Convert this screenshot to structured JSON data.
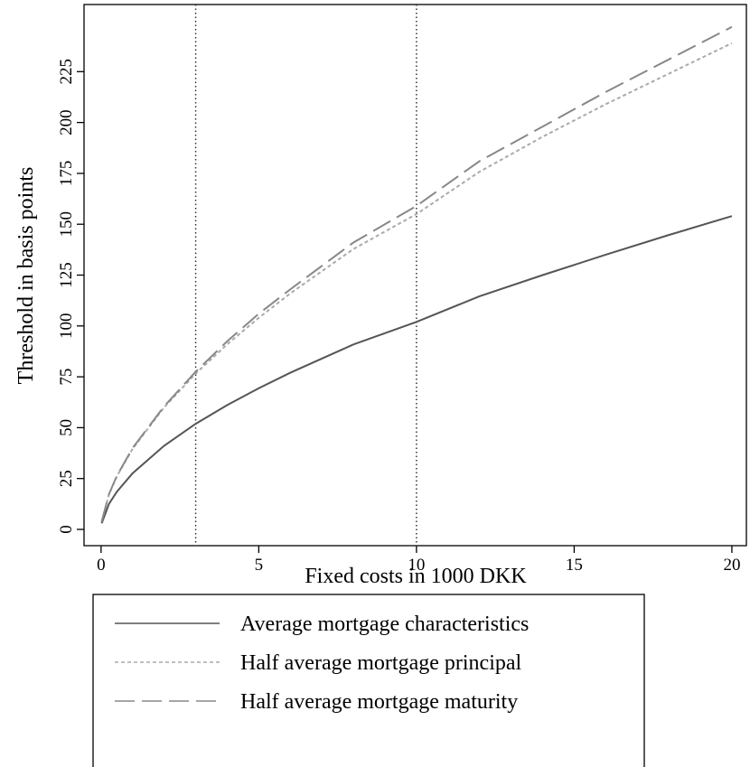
{
  "chart_data": {
    "type": "line",
    "xlabel": "Fixed costs in 1000 DKK",
    "ylabel": "Threshold in basis points",
    "x": [
      0.02,
      0.25,
      0.5,
      1,
      2,
      3,
      4,
      5,
      6,
      8,
      10,
      12,
      14,
      16,
      18,
      20
    ],
    "series": [
      {
        "name": "Average mortgage characteristics",
        "color": "#555555",
        "dash": "solid",
        "values": [
          3,
          12.5,
          18.5,
          27.6,
          41.1,
          51.9,
          61.1,
          69.4,
          77,
          90.9,
          102,
          114.6,
          125,
          135,
          144.7,
          154
        ]
      },
      {
        "name": "Half average mortgage principal",
        "color": "#aaaaaa",
        "dash": "short",
        "values": [
          3.8,
          17.2,
          26.1,
          39.6,
          60,
          76.6,
          91,
          104,
          116,
          137.8,
          155,
          175.8,
          193,
          209,
          224,
          239
        ]
      },
      {
        "name": "Half average mortgage maturity",
        "color": "#888888",
        "dash": "long",
        "values": [
          3.8,
          17.3,
          26.3,
          40,
          60.5,
          77.5,
          92.5,
          106,
          118,
          141,
          159,
          181,
          198,
          215,
          231,
          247
        ]
      }
    ],
    "vlines": [
      3,
      10
    ],
    "xlim": [
      -0.54,
      20.46
    ],
    "xticks": [
      0,
      5,
      10,
      15,
      20
    ],
    "ylim": [
      -8,
      258
    ],
    "yticks": [
      0,
      25,
      50,
      75,
      100,
      125,
      150,
      175,
      200,
      225
    ]
  }
}
